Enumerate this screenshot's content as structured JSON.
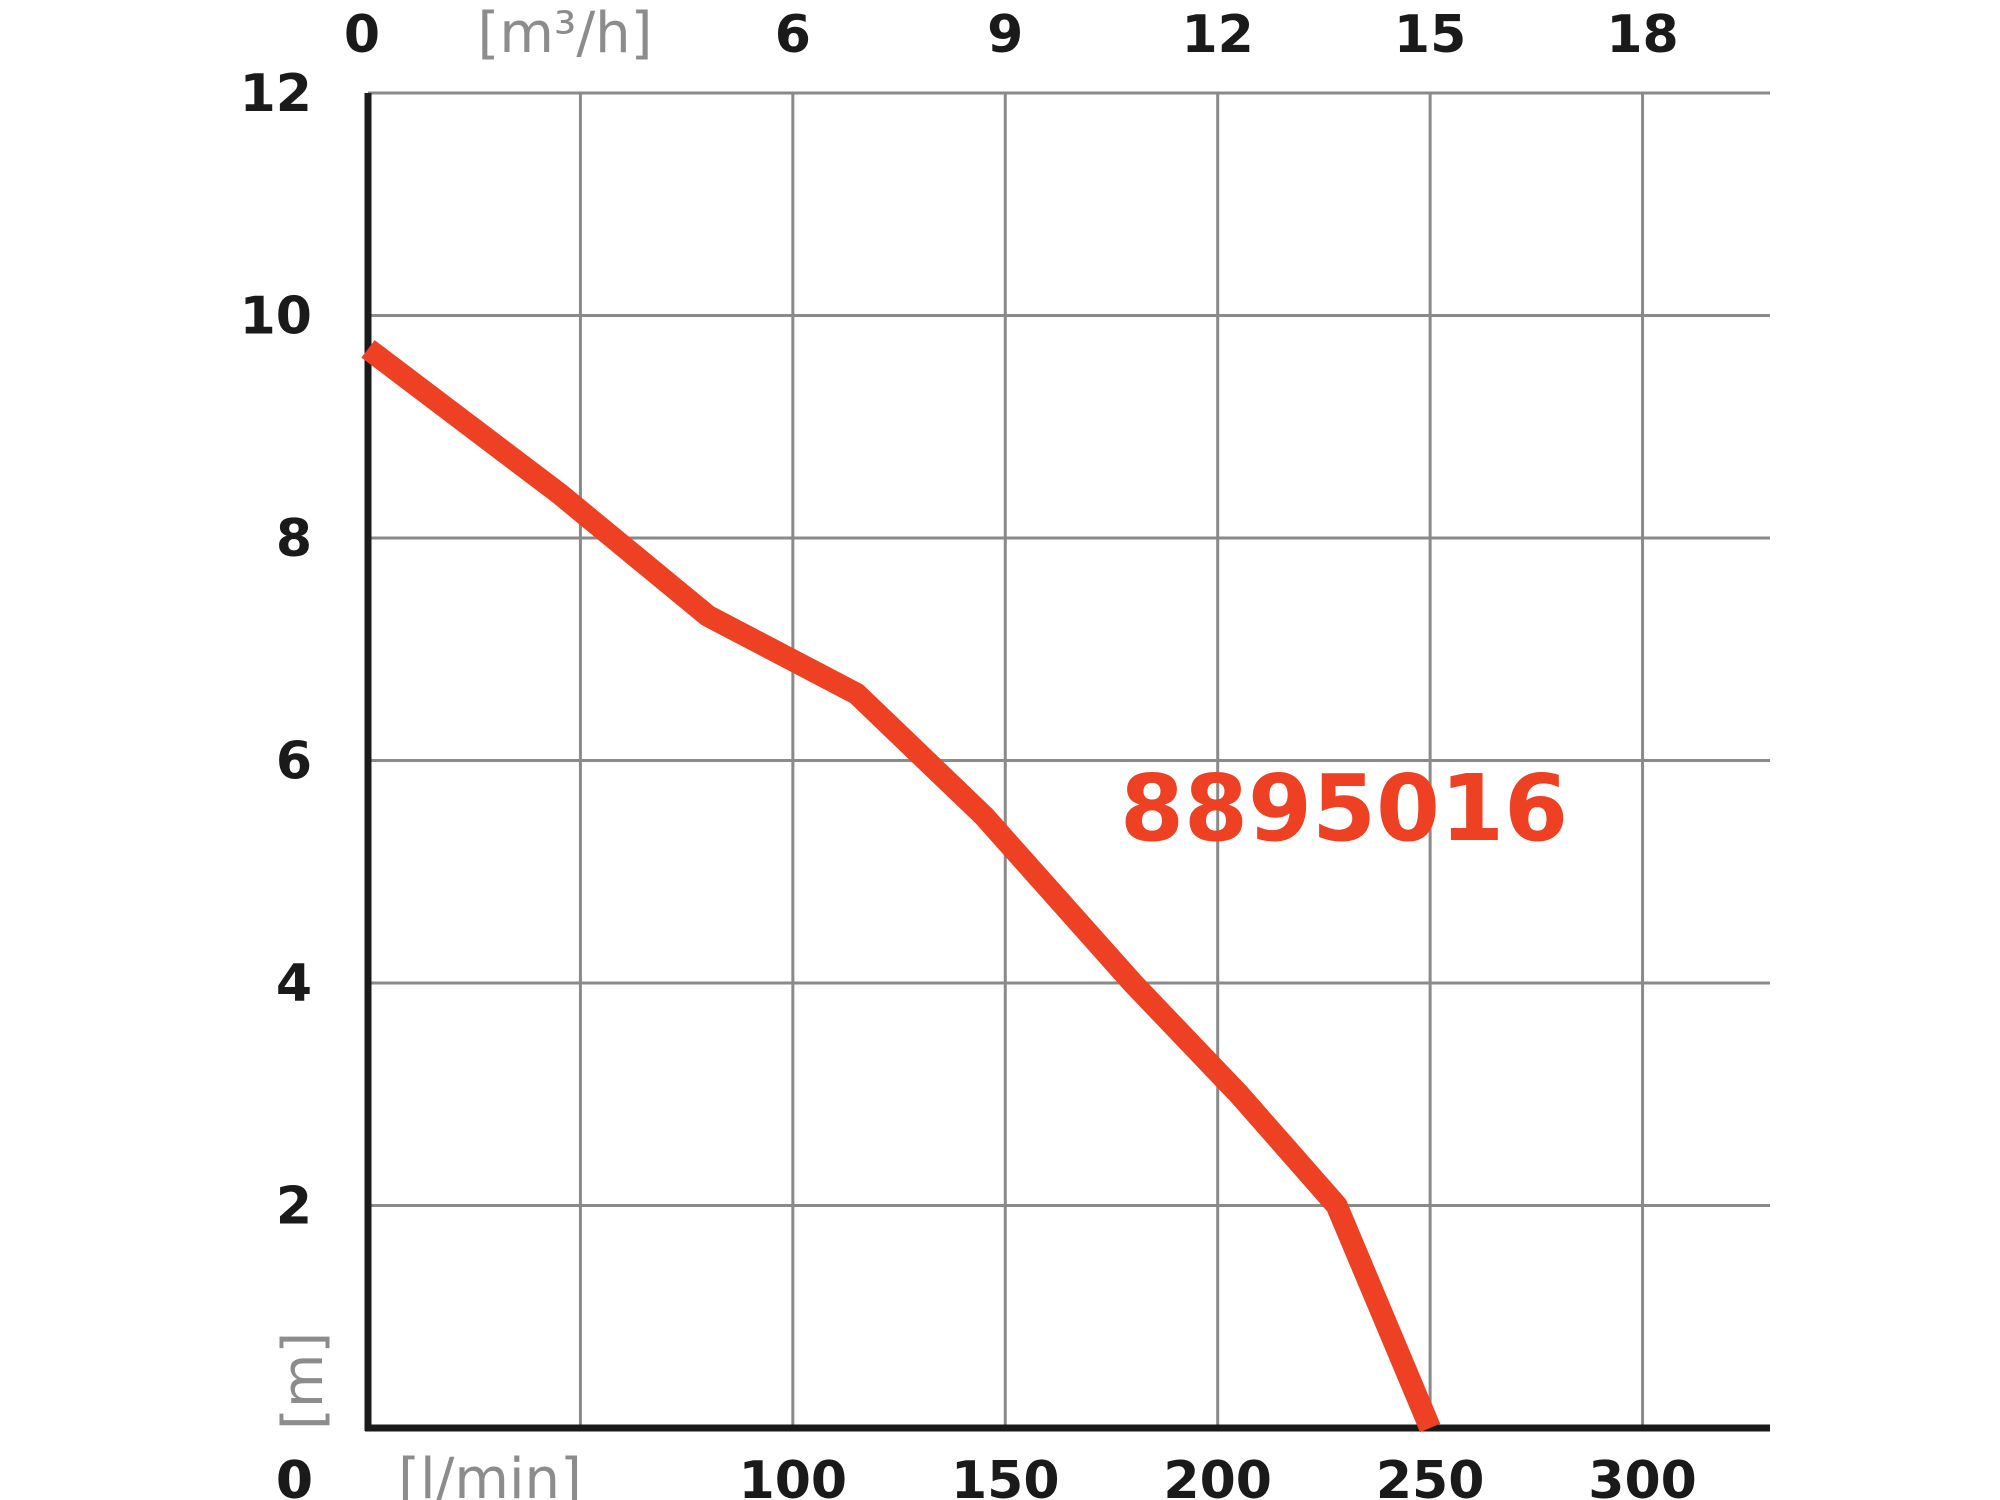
{
  "colors": {
    "curve": "#ee4023",
    "grid": "#8a8a8a",
    "axis": "#1a1a1a",
    "unit_text": "#8c8c8c"
  },
  "chart_data": {
    "type": "line",
    "title": "",
    "grid": true,
    "x_bottom": {
      "unit_label": "[l/min]",
      "range": [
        0,
        330
      ],
      "ticks": [
        0,
        50,
        100,
        150,
        200,
        250,
        300
      ],
      "tick_labels": [
        "0",
        "[l/min]",
        "100",
        "150",
        "200",
        "250",
        "300"
      ]
    },
    "x_top": {
      "unit_label": "[m³/h]",
      "range": [
        0,
        19.8
      ],
      "ticks": [
        0,
        3,
        6,
        9,
        12,
        15,
        18
      ],
      "tick_labels": [
        "0",
        "[m³/h]",
        "6",
        "9",
        "12",
        "15",
        "18"
      ]
    },
    "y": {
      "unit_label": "[m]",
      "range": [
        0,
        12
      ],
      "ticks": [
        0,
        2,
        4,
        6,
        8,
        10,
        12
      ],
      "tick_labels": [
        "0",
        "2",
        "4",
        "6",
        "8",
        "10",
        "12"
      ]
    },
    "series": [
      {
        "name": "8895016",
        "x": [
          0,
          45,
          80,
          115,
          145,
          180,
          205,
          228,
          250
        ],
        "y": [
          9.7,
          8.4,
          7.3,
          6.6,
          5.5,
          4.0,
          3.0,
          2.0,
          0
        ]
      }
    ]
  }
}
